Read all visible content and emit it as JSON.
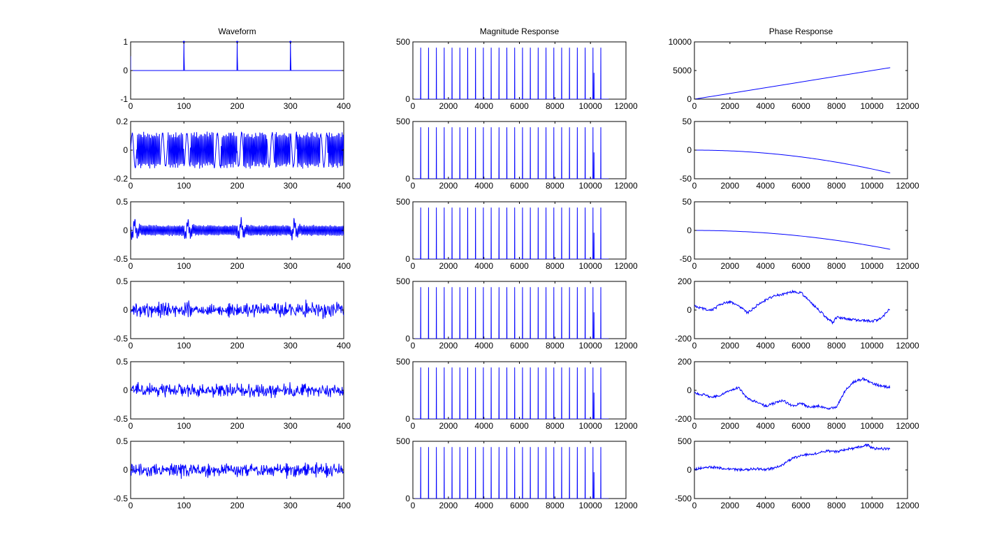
{
  "figure": {
    "background": "#ffffff",
    "line_color": "#0000ff",
    "axes_color": "#000000"
  },
  "chart_data": [
    {
      "type": "line",
      "row": 0,
      "col": 0,
      "title": "Waveform",
      "xlabel": "",
      "ylabel": "",
      "xlim": [
        0,
        400
      ],
      "ylim": [
        -1,
        1
      ],
      "xticks": [
        0,
        100,
        200,
        300,
        400
      ],
      "yticks": [
        -1,
        0,
        1
      ],
      "series": [
        {
          "kind": "impulse_train",
          "period": 100,
          "first": 0,
          "amplitude": 1,
          "description_points": [
            [
              0,
              0.5
            ],
            [
              100,
              1
            ],
            [
              200,
              1
            ],
            [
              300,
              1
            ]
          ]
        }
      ]
    },
    {
      "type": "line",
      "row": 0,
      "col": 1,
      "title": "Magnitude Response",
      "xlabel": "",
      "ylabel": "",
      "xlim": [
        0,
        12000
      ],
      "ylim": [
        0,
        500
      ],
      "xticks": [
        0,
        2000,
        4000,
        6000,
        8000,
        10000,
        12000
      ],
      "yticks": [
        0,
        500
      ],
      "series": [
        {
          "kind": "harmonic_spikes",
          "start": 441,
          "spacing": 441,
          "count": 24,
          "peak": 450,
          "extra_spike": [
            10200,
            230
          ],
          "end_x": 11025
        }
      ]
    },
    {
      "type": "line",
      "row": 0,
      "col": 2,
      "title": "Phase Response",
      "xlabel": "",
      "ylabel": "",
      "xlim": [
        0,
        12000
      ],
      "ylim": [
        0,
        10000
      ],
      "xticks": [
        0,
        2000,
        4000,
        6000,
        8000,
        10000,
        12000
      ],
      "yticks": [
        0,
        5000,
        10000
      ],
      "series": [
        {
          "kind": "linear",
          "points": [
            [
              0,
              0
            ],
            [
              11025,
              5500
            ]
          ]
        }
      ]
    },
    {
      "type": "line",
      "row": 1,
      "col": 0,
      "title": "",
      "xlabel": "",
      "ylabel": "",
      "xlim": [
        0,
        400
      ],
      "ylim": [
        -0.2,
        0.2
      ],
      "xticks": [
        0,
        100,
        200,
        300,
        400
      ],
      "yticks": [
        -0.2,
        0,
        0.2
      ],
      "series": [
        {
          "kind": "dense_oscillation",
          "amplitude": 0.13,
          "description": "periodic oscillating waveform, period 100 samples"
        }
      ]
    },
    {
      "type": "line",
      "row": 1,
      "col": 1,
      "title": "",
      "xlabel": "",
      "ylabel": "",
      "xlim": [
        0,
        12000
      ],
      "ylim": [
        0,
        500
      ],
      "xticks": [
        0,
        2000,
        4000,
        6000,
        8000,
        10000,
        12000
      ],
      "yticks": [
        0,
        500
      ],
      "series": [
        {
          "kind": "harmonic_spikes",
          "start": 441,
          "spacing": 441,
          "count": 24,
          "peak": 450,
          "extra_spike": [
            10200,
            230
          ],
          "end_x": 11025
        }
      ]
    },
    {
      "type": "line",
      "row": 1,
      "col": 2,
      "title": "",
      "xlabel": "",
      "ylabel": "",
      "xlim": [
        0,
        12000
      ],
      "ylim": [
        -50,
        50
      ],
      "xticks": [
        0,
        2000,
        4000,
        6000,
        8000,
        10000,
        12000
      ],
      "yticks": [
        -50,
        0,
        50
      ],
      "series": [
        {
          "kind": "quadratic_decay",
          "start": [
            0,
            0
          ],
          "end": [
            11025,
            -40
          ]
        }
      ]
    },
    {
      "type": "line",
      "row": 2,
      "col": 0,
      "title": "",
      "xlabel": "",
      "ylabel": "",
      "xlim": [
        0,
        400
      ],
      "ylim": [
        -0.5,
        0.5
      ],
      "xticks": [
        0,
        100,
        200,
        300,
        400
      ],
      "yticks": [
        -0.5,
        0,
        0.5
      ],
      "series": [
        {
          "kind": "oscillation_with_bursts",
          "amplitude": 0.1,
          "bursts_at": [
            5,
            105,
            205,
            305
          ],
          "burst_amplitude": 0.22
        }
      ]
    },
    {
      "type": "line",
      "row": 2,
      "col": 1,
      "title": "",
      "xlabel": "",
      "ylabel": "",
      "xlim": [
        0,
        12000
      ],
      "ylim": [
        0,
        500
      ],
      "xticks": [
        0,
        2000,
        4000,
        6000,
        8000,
        10000,
        12000
      ],
      "yticks": [
        0,
        500
      ],
      "series": [
        {
          "kind": "harmonic_spikes",
          "start": 441,
          "spacing": 441,
          "count": 24,
          "peak": 450,
          "extra_spike": [
            10200,
            230
          ],
          "end_x": 11025
        }
      ]
    },
    {
      "type": "line",
      "row": 2,
      "col": 2,
      "title": "",
      "xlabel": "",
      "ylabel": "",
      "xlim": [
        0,
        12000
      ],
      "ylim": [
        -50,
        50
      ],
      "xticks": [
        0,
        2000,
        4000,
        6000,
        8000,
        10000,
        12000
      ],
      "yticks": [
        -50,
        0,
        50
      ],
      "series": [
        {
          "kind": "quadratic_decay",
          "start": [
            0,
            0
          ],
          "end": [
            11025,
            -33
          ]
        }
      ]
    },
    {
      "type": "line",
      "row": 3,
      "col": 0,
      "title": "",
      "xlabel": "",
      "ylabel": "",
      "xlim": [
        0,
        400
      ],
      "ylim": [
        -0.5,
        0.5
      ],
      "xticks": [
        0,
        100,
        200,
        300,
        400
      ],
      "yticks": [
        -0.5,
        0,
        0.5
      ],
      "series": [
        {
          "kind": "noise",
          "amplitude": 0.2
        }
      ]
    },
    {
      "type": "line",
      "row": 3,
      "col": 1,
      "title": "",
      "xlabel": "",
      "ylabel": "",
      "xlim": [
        0,
        12000
      ],
      "ylim": [
        0,
        500
      ],
      "xticks": [
        0,
        2000,
        4000,
        6000,
        8000,
        10000,
        12000
      ],
      "yticks": [
        0,
        500
      ],
      "series": [
        {
          "kind": "harmonic_spikes",
          "start": 441,
          "spacing": 441,
          "count": 24,
          "peak": 450,
          "extra_spike": [
            10200,
            230
          ],
          "end_x": 11025
        }
      ]
    },
    {
      "type": "line",
      "row": 3,
      "col": 2,
      "title": "",
      "xlabel": "",
      "ylabel": "",
      "xlim": [
        0,
        12000
      ],
      "ylim": [
        -200,
        200
      ],
      "xticks": [
        0,
        2000,
        4000,
        6000,
        8000,
        10000,
        12000
      ],
      "yticks": [
        -200,
        0,
        200
      ],
      "series": [
        {
          "kind": "random_walk",
          "points": [
            [
              0,
              30
            ],
            [
              500,
              10
            ],
            [
              1000,
              0
            ],
            [
              1500,
              40
            ],
            [
              2000,
              60
            ],
            [
              2500,
              30
            ],
            [
              3000,
              -20
            ],
            [
              3500,
              30
            ],
            [
              4000,
              70
            ],
            [
              4500,
              100
            ],
            [
              5000,
              110
            ],
            [
              5500,
              130
            ],
            [
              6000,
              120
            ],
            [
              6500,
              60
            ],
            [
              7000,
              0
            ],
            [
              7500,
              -60
            ],
            [
              7800,
              -90
            ],
            [
              8000,
              -50
            ],
            [
              8500,
              -60
            ],
            [
              9000,
              -70
            ],
            [
              9500,
              -70
            ],
            [
              10000,
              -80
            ],
            [
              10500,
              -60
            ],
            [
              11025,
              10
            ]
          ]
        }
      ]
    },
    {
      "type": "line",
      "row": 4,
      "col": 0,
      "title": "",
      "xlabel": "",
      "ylabel": "",
      "xlim": [
        0,
        400
      ],
      "ylim": [
        -0.5,
        0.5
      ],
      "xticks": [
        0,
        100,
        200,
        300,
        400
      ],
      "yticks": [
        -0.5,
        0,
        0.5
      ],
      "series": [
        {
          "kind": "noise",
          "amplitude": 0.18
        }
      ]
    },
    {
      "type": "line",
      "row": 4,
      "col": 1,
      "title": "",
      "xlabel": "",
      "ylabel": "",
      "xlim": [
        0,
        12000
      ],
      "ylim": [
        0,
        500
      ],
      "xticks": [
        0,
        2000,
        4000,
        6000,
        8000,
        10000,
        12000
      ],
      "yticks": [
        0,
        500
      ],
      "series": [
        {
          "kind": "harmonic_spikes",
          "start": 441,
          "spacing": 441,
          "count": 24,
          "peak": 450,
          "extra_spike": [
            10200,
            230
          ],
          "end_x": 11025
        }
      ]
    },
    {
      "type": "line",
      "row": 4,
      "col": 2,
      "title": "",
      "xlabel": "",
      "ylabel": "",
      "xlim": [
        0,
        12000
      ],
      "ylim": [
        -200,
        200
      ],
      "xticks": [
        0,
        2000,
        4000,
        6000,
        8000,
        10000,
        12000
      ],
      "yticks": [
        -200,
        0,
        200
      ],
      "series": [
        {
          "kind": "random_walk",
          "points": [
            [
              0,
              -20
            ],
            [
              500,
              -30
            ],
            [
              1000,
              -50
            ],
            [
              1500,
              -30
            ],
            [
              2000,
              0
            ],
            [
              2500,
              20
            ],
            [
              3000,
              -60
            ],
            [
              3500,
              -80
            ],
            [
              4000,
              -110
            ],
            [
              4500,
              -90
            ],
            [
              5000,
              -70
            ],
            [
              5500,
              -110
            ],
            [
              6000,
              -90
            ],
            [
              6500,
              -120
            ],
            [
              7000,
              -110
            ],
            [
              7500,
              -130
            ],
            [
              8000,
              -120
            ],
            [
              8500,
              0
            ],
            [
              9000,
              60
            ],
            [
              9500,
              80
            ],
            [
              10000,
              50
            ],
            [
              10500,
              30
            ],
            [
              11025,
              20
            ]
          ]
        }
      ]
    },
    {
      "type": "line",
      "row": 5,
      "col": 0,
      "title": "",
      "xlabel": "",
      "ylabel": "",
      "xlim": [
        0,
        400
      ],
      "ylim": [
        -0.5,
        0.5
      ],
      "xticks": [
        0,
        100,
        200,
        300,
        400
      ],
      "yticks": [
        -0.5,
        0,
        0.5
      ],
      "series": [
        {
          "kind": "noise",
          "amplitude": 0.18
        }
      ]
    },
    {
      "type": "line",
      "row": 5,
      "col": 1,
      "title": "",
      "xlabel": "",
      "ylabel": "",
      "xlim": [
        0,
        12000
      ],
      "ylim": [
        0,
        500
      ],
      "xticks": [
        0,
        2000,
        4000,
        6000,
        8000,
        10000,
        12000
      ],
      "yticks": [
        0,
        500
      ],
      "series": [
        {
          "kind": "harmonic_spikes",
          "start": 441,
          "spacing": 441,
          "count": 24,
          "peak": 450,
          "extra_spike": [
            10200,
            230
          ],
          "end_x": 11025
        }
      ]
    },
    {
      "type": "line",
      "row": 5,
      "col": 2,
      "title": "",
      "xlabel": "",
      "ylabel": "",
      "xlim": [
        0,
        12000
      ],
      "ylim": [
        -500,
        500
      ],
      "xticks": [
        0,
        2000,
        4000,
        6000,
        8000,
        10000,
        12000
      ],
      "yticks": [
        -500,
        0,
        500
      ],
      "series": [
        {
          "kind": "random_walk",
          "points": [
            [
              0,
              10
            ],
            [
              500,
              40
            ],
            [
              1000,
              50
            ],
            [
              1500,
              30
            ],
            [
              2000,
              20
            ],
            [
              2500,
              0
            ],
            [
              3000,
              10
            ],
            [
              3500,
              20
            ],
            [
              4000,
              0
            ],
            [
              4500,
              40
            ],
            [
              5000,
              100
            ],
            [
              5500,
              200
            ],
            [
              6000,
              250
            ],
            [
              6500,
              270
            ],
            [
              7000,
              300
            ],
            [
              7500,
              330
            ],
            [
              8000,
              320
            ],
            [
              8500,
              360
            ],
            [
              9000,
              380
            ],
            [
              9500,
              420
            ],
            [
              9800,
              440
            ],
            [
              10000,
              380
            ],
            [
              10500,
              370
            ],
            [
              11025,
              370
            ]
          ]
        }
      ]
    }
  ]
}
